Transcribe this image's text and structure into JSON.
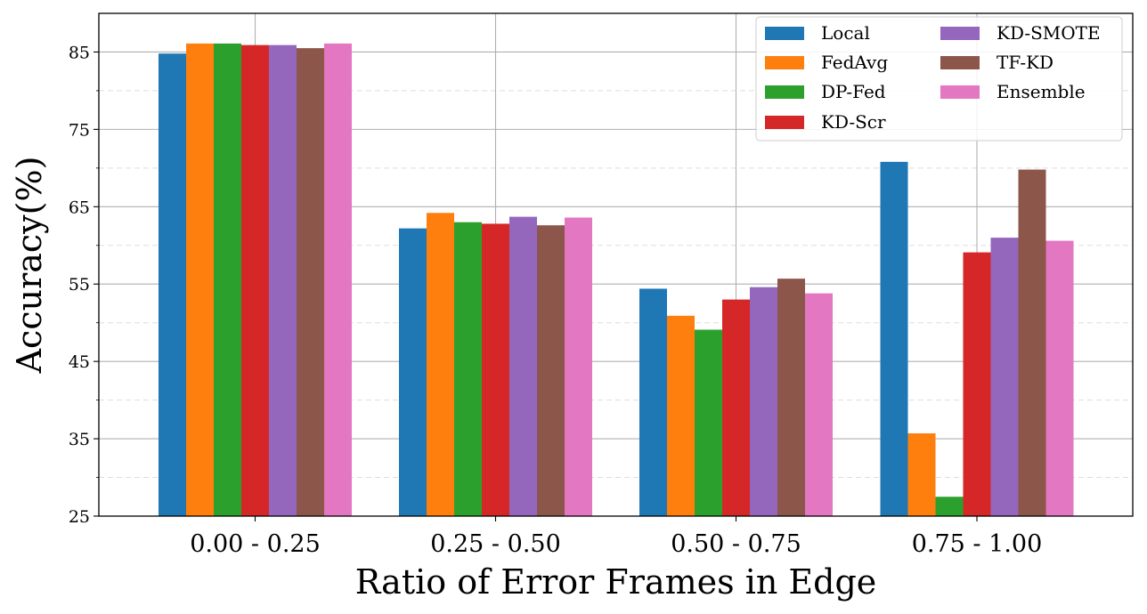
{
  "chart_data": {
    "type": "bar",
    "title": "",
    "xlabel": "Ratio of Error Frames in Edge",
    "ylabel": "Accuracy(%)",
    "ylim": [
      25,
      90
    ],
    "yticks": [
      25,
      35,
      45,
      55,
      65,
      75,
      85
    ],
    "categories": [
      "0.00 - 0.25",
      "0.25 - 0.50",
      "0.50 - 0.75",
      "0.75 - 1.00"
    ],
    "grid": true,
    "legend_position": "top-right",
    "series": [
      {
        "name": "Local",
        "color": "#1f77b4",
        "values": [
          84.8,
          62.2,
          54.4,
          70.8
        ]
      },
      {
        "name": "FedAvg",
        "color": "#ff7f0e",
        "values": [
          86.1,
          64.2,
          50.9,
          35.7
        ]
      },
      {
        "name": "DP-Fed",
        "color": "#2ca02c",
        "values": [
          86.1,
          63.0,
          49.1,
          27.5
        ]
      },
      {
        "name": "KD-Scr",
        "color": "#d62728",
        "values": [
          85.9,
          62.8,
          53.0,
          59.1
        ]
      },
      {
        "name": "KD-SMOTE",
        "color": "#9467bd",
        "values": [
          85.9,
          63.7,
          54.6,
          61.0
        ]
      },
      {
        "name": "TF-KD",
        "color": "#8c564b",
        "values": [
          85.5,
          62.6,
          55.7,
          69.8
        ]
      },
      {
        "name": "Ensemble",
        "color": "#e377c2",
        "values": [
          86.1,
          63.6,
          53.8,
          60.6
        ]
      }
    ]
  }
}
